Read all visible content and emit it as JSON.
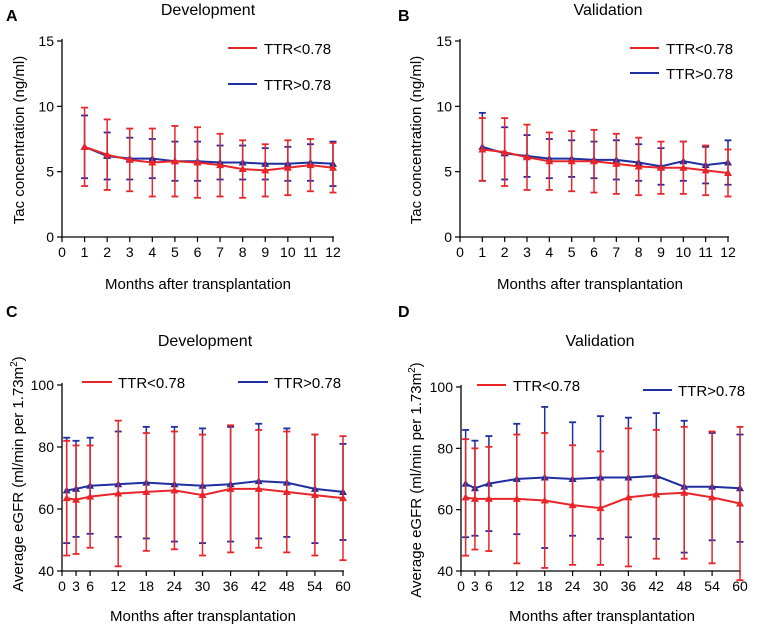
{
  "figure": {
    "panels": [
      {
        "letter": "A",
        "title": "Development"
      },
      {
        "letter": "B",
        "title": "Validation"
      },
      {
        "letter": "C",
        "title": "Development"
      },
      {
        "letter": "D",
        "title": "Validation"
      }
    ]
  },
  "colors": {
    "ttr_low": "#e8262a",
    "ttr_high": "#1f2ea0",
    "axis": "#000000"
  },
  "chart_data": [
    {
      "type": "line",
      "panel": "A",
      "title": "Development",
      "xlabel": "Months after transplantation",
      "ylabel": "Tac concentration (ng/ml)",
      "xlim": [
        0,
        12
      ],
      "ylim": [
        0,
        15
      ],
      "xticks": [
        0,
        1,
        2,
        3,
        4,
        5,
        6,
        7,
        8,
        9,
        10,
        11,
        12
      ],
      "yticks": [
        0,
        5,
        10,
        15
      ],
      "legend_position": "top-right",
      "series": [
        {
          "name": "TTR<0.78",
          "color": "#e8262a",
          "x": [
            1,
            2,
            3,
            4,
            5,
            6,
            7,
            8,
            9,
            10,
            11,
            12
          ],
          "y": [
            6.9,
            6.3,
            5.9,
            5.7,
            5.8,
            5.7,
            5.5,
            5.2,
            5.1,
            5.3,
            5.5,
            5.3
          ],
          "err": [
            3.0,
            2.7,
            2.4,
            2.6,
            2.7,
            2.7,
            2.4,
            2.2,
            2.0,
            2.1,
            2.0,
            1.9
          ]
        },
        {
          "name": "TTR>0.78",
          "color": "#1f2ea0",
          "x": [
            1,
            2,
            3,
            4,
            5,
            6,
            7,
            8,
            9,
            10,
            11,
            12
          ],
          "y": [
            6.9,
            6.2,
            6.0,
            6.0,
            5.8,
            5.8,
            5.7,
            5.7,
            5.6,
            5.6,
            5.7,
            5.6
          ],
          "err": [
            2.4,
            1.8,
            1.6,
            1.5,
            1.5,
            1.5,
            1.3,
            1.3,
            1.2,
            1.3,
            1.4,
            1.7
          ]
        }
      ]
    },
    {
      "type": "line",
      "panel": "B",
      "title": "Validation",
      "xlabel": "Months after transplantation",
      "ylabel": "Tac concentration (ng/ml)",
      "xlim": [
        0,
        12
      ],
      "ylim": [
        0,
        15
      ],
      "xticks": [
        0,
        1,
        2,
        3,
        4,
        5,
        6,
        7,
        8,
        9,
        10,
        11,
        12
      ],
      "yticks": [
        0,
        5,
        10,
        15
      ],
      "legend_position": "top-right",
      "series": [
        {
          "name": "TTR<0.78",
          "color": "#e8262a",
          "x": [
            1,
            2,
            3,
            4,
            5,
            6,
            7,
            8,
            9,
            10,
            11,
            12
          ],
          "y": [
            6.7,
            6.5,
            6.1,
            5.8,
            5.8,
            5.8,
            5.6,
            5.4,
            5.3,
            5.3,
            5.1,
            4.9
          ],
          "err": [
            2.4,
            2.6,
            2.5,
            2.2,
            2.3,
            2.4,
            2.3,
            2.2,
            2.0,
            2.0,
            1.9,
            1.8
          ]
        },
        {
          "name": "TTR>0.78",
          "color": "#1f2ea0",
          "x": [
            1,
            2,
            3,
            4,
            5,
            6,
            7,
            8,
            9,
            10,
            11,
            12
          ],
          "y": [
            6.9,
            6.4,
            6.2,
            6.0,
            6.0,
            5.9,
            5.9,
            5.7,
            5.4,
            5.8,
            5.5,
            5.7
          ],
          "err": [
            2.6,
            2.0,
            1.6,
            1.5,
            1.4,
            1.4,
            1.5,
            1.4,
            1.4,
            1.5,
            1.4,
            1.7
          ]
        }
      ]
    },
    {
      "type": "line",
      "panel": "C",
      "title": "Development",
      "xlabel": "Months after transplantation",
      "ylabel_main": "Average eGFR (ml/min per 1.73m",
      "ylabel_sup": "2",
      "ylabel_end": ")",
      "xlim": [
        0,
        60
      ],
      "ylim": [
        40,
        100
      ],
      "xticks": [
        0,
        3,
        6,
        12,
        18,
        24,
        30,
        36,
        42,
        48,
        54,
        60
      ],
      "yticks": [
        40,
        60,
        80,
        100
      ],
      "legend_position": "top",
      "series": [
        {
          "name": "TTR<0.78",
          "color": "#e8262a",
          "x": [
            1,
            3,
            6,
            12,
            18,
            24,
            30,
            36,
            42,
            48,
            54,
            60
          ],
          "y": [
            63.5,
            63.0,
            64.0,
            65.0,
            65.5,
            66.0,
            64.5,
            66.5,
            66.5,
            65.5,
            64.5,
            63.5
          ],
          "err": [
            18.5,
            17.5,
            16.5,
            23.5,
            19.0,
            19.0,
            19.5,
            20.5,
            19.0,
            19.5,
            19.5,
            20.0
          ]
        },
        {
          "name": "TTR>0.78",
          "color": "#1f2ea0",
          "x": [
            1,
            3,
            6,
            12,
            18,
            24,
            30,
            36,
            42,
            48,
            54,
            60
          ],
          "y": [
            66.0,
            66.5,
            67.5,
            68.0,
            68.5,
            68.0,
            67.5,
            68.0,
            69.0,
            68.5,
            66.5,
            65.5
          ],
          "err": [
            17.0,
            15.5,
            15.5,
            17.0,
            18.0,
            18.5,
            18.5,
            18.5,
            18.5,
            17.5,
            17.5,
            15.5
          ]
        }
      ]
    },
    {
      "type": "line",
      "panel": "D",
      "title": "Validation",
      "xlabel": "Months after transplantation",
      "ylabel_main": "Average eGFR (ml/min per 1.73m",
      "ylabel_sup": "2",
      "ylabel_end": ")",
      "xlim": [
        0,
        60
      ],
      "ylim": [
        40,
        100
      ],
      "xticks": [
        0,
        3,
        6,
        12,
        18,
        24,
        30,
        36,
        42,
        48,
        54,
        60
      ],
      "yticks": [
        40,
        60,
        80,
        100
      ],
      "legend_position": "top",
      "series": [
        {
          "name": "TTR<0.78",
          "color": "#e8262a",
          "x": [
            1,
            3,
            6,
            12,
            18,
            24,
            30,
            36,
            42,
            48,
            54,
            60
          ],
          "y": [
            64.0,
            63.5,
            63.5,
            63.5,
            63.0,
            61.5,
            60.5,
            64.0,
            65.0,
            65.5,
            64.0,
            62.0
          ],
          "err": [
            19.0,
            16.5,
            17.0,
            21.0,
            22.0,
            19.5,
            18.5,
            22.5,
            21.0,
            21.5,
            21.5,
            25.0
          ]
        },
        {
          "name": "TTR>0.78",
          "color": "#1f2ea0",
          "x": [
            1,
            3,
            6,
            12,
            18,
            24,
            30,
            36,
            42,
            48,
            54,
            60
          ],
          "y": [
            68.5,
            67.0,
            68.5,
            70.0,
            70.5,
            70.0,
            70.5,
            70.5,
            71.0,
            67.5,
            67.5,
            67.0
          ],
          "err": [
            17.5,
            15.5,
            15.5,
            18.0,
            23.0,
            18.5,
            20.0,
            19.5,
            20.5,
            21.5,
            17.5,
            17.5
          ]
        }
      ]
    }
  ]
}
